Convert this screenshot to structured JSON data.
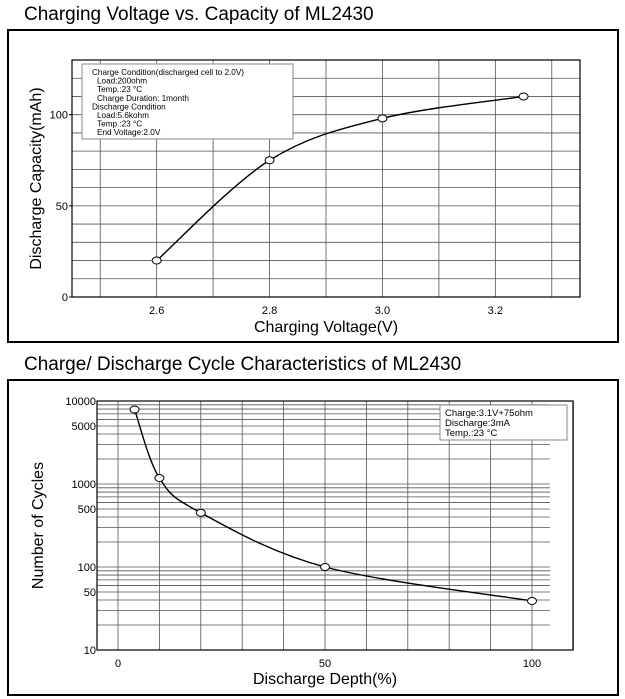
{
  "chart_data": [
    {
      "type": "line",
      "title": "Charging Voltage vs. Capacity of ML2430",
      "xlabel": "Charging Voltage(V)",
      "ylabel": "Discharge Capacity(mAh)",
      "xlim": [
        2.45,
        3.35
      ],
      "ylim": [
        0,
        130
      ],
      "xticks": [
        2.6,
        2.8,
        3.0,
        3.2
      ],
      "xtick_labels": [
        "2.6",
        "2.8",
        "3.0",
        "3.2"
      ],
      "yticks": [
        0,
        50,
        100
      ],
      "ytick_labels": [
        "0",
        "50",
        "100"
      ],
      "grid": true,
      "x": [
        2.6,
        2.8,
        3.0,
        3.25
      ],
      "y": [
        20,
        75,
        98,
        110
      ],
      "legend_position": "top-left",
      "annotation": [
        "Charge Condition(discharged cell to 2.0V)",
        "  Load:200ohm",
        "  Temp.:23 °C",
        "  Charge Duration: 1month",
        "Discharge Condition",
        "  Load:5.6kohm",
        "  Temp.:23 °C",
        "  End Voltage:2.0V"
      ]
    },
    {
      "type": "line",
      "title": "Charge/ Discharge Cycle Characteristics of ML2430",
      "xlabel": "Discharge Depth(%)",
      "ylabel": "Number of Cycles",
      "yscale": "log",
      "xlim": [
        -5,
        110
      ],
      "ylim": [
        10,
        10000
      ],
      "xticks": [
        0,
        50,
        100
      ],
      "xtick_labels": [
        "0",
        "50",
        "100"
      ],
      "yticks": [
        10,
        50,
        100,
        500,
        1000,
        5000,
        10000
      ],
      "ytick_labels": [
        "10",
        "50",
        "100",
        "500",
        "1000",
        "5000",
        "10000"
      ],
      "grid": true,
      "x": [
        4,
        10,
        20,
        50,
        100
      ],
      "y": [
        7900,
        1180,
        450,
        100,
        39
      ],
      "legend_position": "top-right",
      "annotation": [
        "Charge:3.1V+75ohm",
        "Discharge:3mA",
        "Temp.:23   °C"
      ]
    }
  ]
}
